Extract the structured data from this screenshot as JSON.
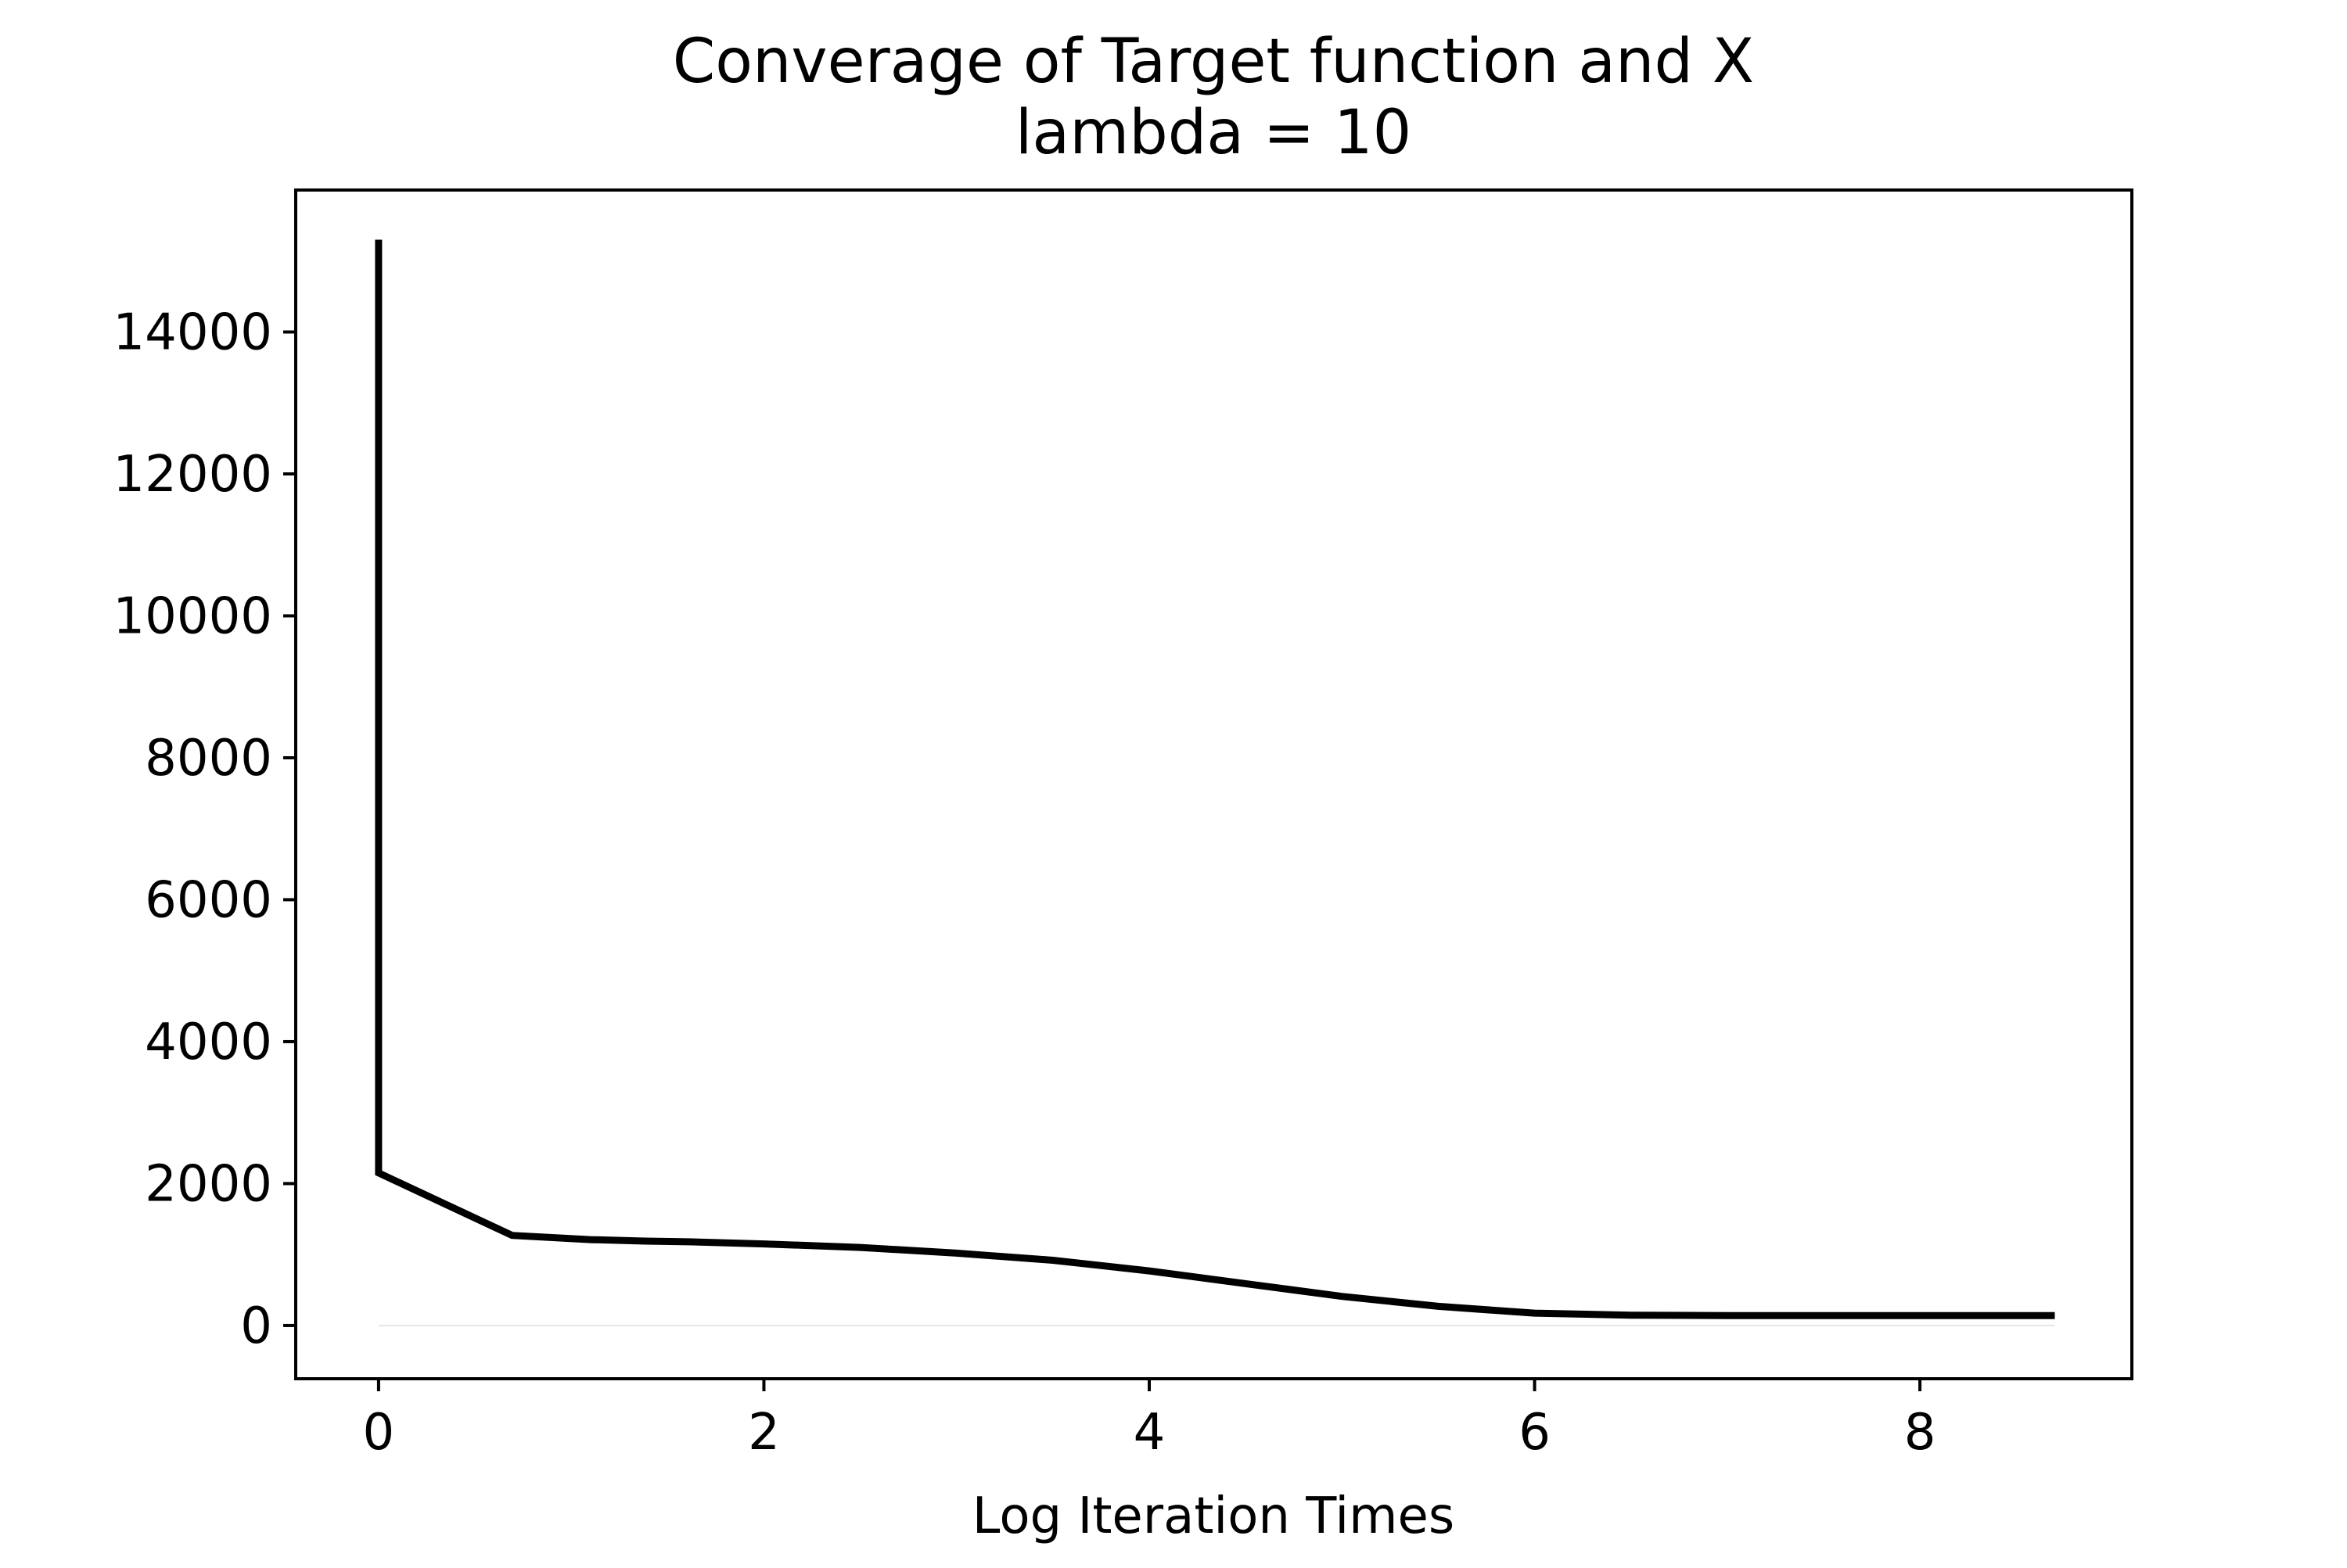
{
  "chart_data": {
    "type": "line",
    "title": "Converage of Target function and X",
    "subtitle": "lambda = 10",
    "xlabel": "Log Iteration Times",
    "ylabel": "",
    "xlim": [
      -0.43,
      9.1
    ],
    "ylim": [
      -750,
      16000
    ],
    "xticks": [
      0,
      2,
      4,
      6,
      8
    ],
    "yticks": [
      0,
      2000,
      4000,
      6000,
      8000,
      10000,
      12000,
      14000
    ],
    "xtick_labels": [
      "0",
      "2",
      "4",
      "6",
      "8"
    ],
    "ytick_labels": [
      "0",
      "2000",
      "4000",
      "6000",
      "8000",
      "10000",
      "12000",
      "14000"
    ],
    "grid": false,
    "series": [
      {
        "color": "#000000",
        "x": [
          0,
          0,
          0.693,
          1.099,
          1.386,
          1.609,
          2.0,
          2.5,
          3.0,
          3.5,
          4.0,
          4.5,
          5.0,
          5.5,
          6.0,
          6.5,
          7.0,
          7.5,
          8.0,
          8.7
        ],
        "y": [
          15300,
          2150,
          1270,
          1210,
          1190,
          1180,
          1150,
          1100,
          1020,
          920,
          770,
          590,
          410,
          270,
          175,
          145,
          140,
          140,
          140,
          140
        ]
      },
      {
        "color": "#e6e6e6",
        "x": [
          0,
          8.7
        ],
        "y": [
          0,
          0
        ]
      }
    ]
  }
}
